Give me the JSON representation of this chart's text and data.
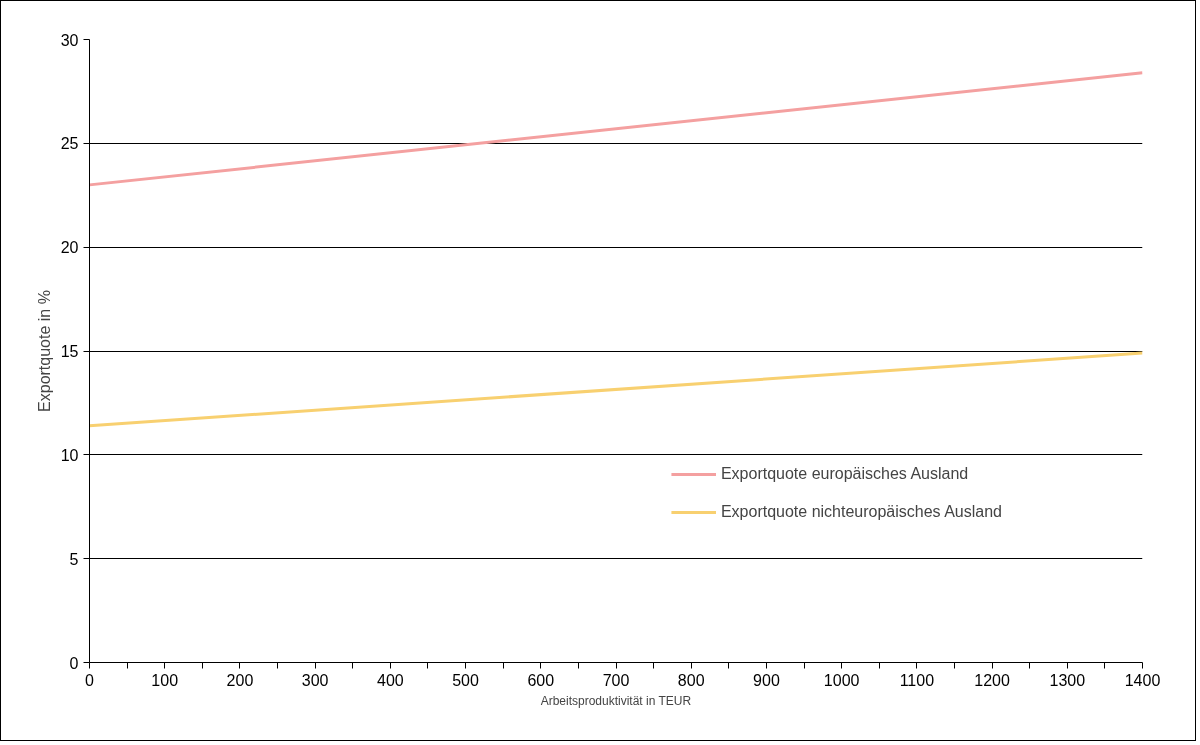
{
  "chart_data": {
    "type": "line",
    "xlabel": "Arbeitsproduktivität in TEUR",
    "ylabel": "Exportquote in %",
    "x": [
      0,
      1400
    ],
    "series": [
      {
        "name": "Exportquote europäisches Ausland",
        "color": "#f4a0a0",
        "values": [
          23,
          28.4
        ]
      },
      {
        "name": "Exportquote nichteuropäisches Ausland",
        "color": "#f8d070",
        "values": [
          11.4,
          14.9
        ]
      }
    ],
    "xlim": [
      0,
      1400
    ],
    "xticks": [
      0,
      {
        "value": 50,
        "label": null
      },
      100,
      {
        "value": 150,
        "label": null
      },
      200,
      {
        "value": 250,
        "label": null
      },
      300,
      {
        "value": 350,
        "label": null
      },
      400,
      {
        "value": 450,
        "label": null
      },
      500,
      {
        "value": 550,
        "label": null
      },
      600,
      {
        "value": 650,
        "label": null
      },
      700,
      {
        "value": 750,
        "label": null
      },
      800,
      {
        "value": 850,
        "label": null
      },
      900,
      {
        "value": 950,
        "label": null
      },
      1000,
      {
        "value": 1050,
        "label": null
      },
      1100,
      {
        "value": 1150,
        "label": null
      },
      1200,
      {
        "value": 1250,
        "label": null
      },
      1300,
      {
        "value": 1350,
        "label": null
      },
      1400
    ],
    "ylim": [
      0,
      30
    ],
    "yticks": [
      0,
      5,
      10,
      15,
      20,
      25,
      30
    ],
    "grid": "y",
    "legend": "bottom right",
    "marker": "none",
    "line_style": "solid"
  }
}
